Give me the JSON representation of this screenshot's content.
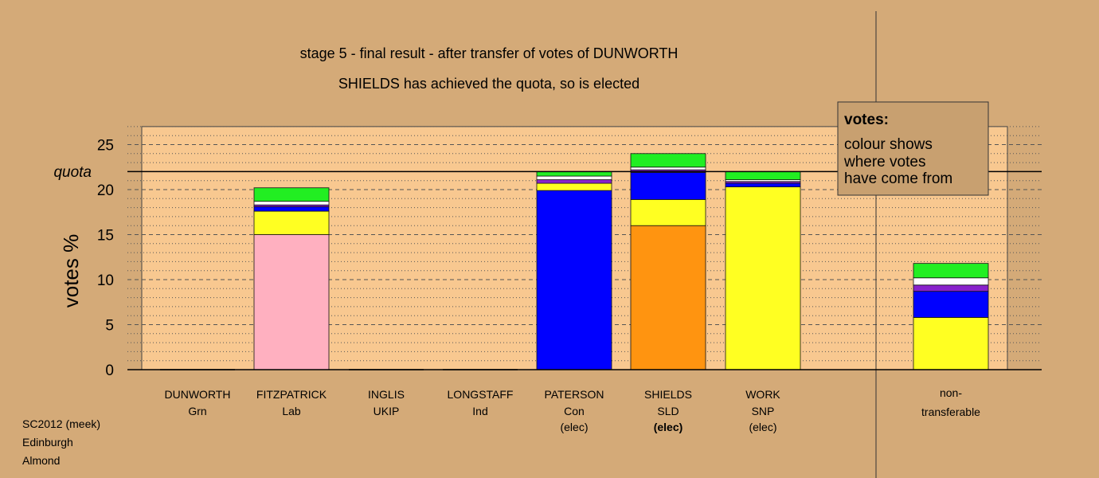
{
  "chart_data": {
    "type": "bar",
    "stacked": true,
    "title": "stage 5 - final result - after transfer of votes of DUNWORTH",
    "subtitle": "SHIELDS has achieved the quota, so is elected",
    "ylabel": "votes %",
    "ylim": [
      0,
      27
    ],
    "yticks": [
      "0",
      "5",
      "10",
      "15",
      "20",
      "25"
    ],
    "quota_label": "quota",
    "quota_value": 22.0,
    "candidates": [
      {
        "name": "DUNWORTH",
        "party": "Grn",
        "status": "",
        "segments": []
      },
      {
        "name": "FITZPATRICK",
        "party": "Lab",
        "status": "",
        "segments": [
          {
            "color": "#ffb0c0",
            "value": 15.0
          },
          {
            "color": "#ffff22",
            "value": 2.6
          },
          {
            "color": "#0000ff",
            "value": 0.5
          },
          {
            "color": "#8822cc",
            "value": 0.2
          },
          {
            "color": "#ffffff",
            "value": 0.4
          },
          {
            "color": "#22ee22",
            "value": 1.5
          }
        ]
      },
      {
        "name": "INGLIS",
        "party": "UKIP",
        "status": "",
        "segments": []
      },
      {
        "name": "LONGSTAFF",
        "party": "Ind",
        "status": "",
        "segments": []
      },
      {
        "name": "PATERSON",
        "party": "Con",
        "status": "(elec)",
        "segments": [
          {
            "color": "#0000ff",
            "value": 19.9
          },
          {
            "color": "#ffff22",
            "value": 0.8
          },
          {
            "color": "#8822cc",
            "value": 0.4
          },
          {
            "color": "#ffffff",
            "value": 0.4
          },
          {
            "color": "#22ee22",
            "value": 0.5
          }
        ]
      },
      {
        "name": "SHIELDS",
        "party": "SLD",
        "status": "(elec)",
        "status_bold": true,
        "segments": [
          {
            "color": "#ff9410",
            "value": 16.0
          },
          {
            "color": "#ffff22",
            "value": 2.9
          },
          {
            "color": "#0000ff",
            "value": 3.0
          },
          {
            "color": "#8822cc",
            "value": 0.3
          },
          {
            "color": "#ffffff",
            "value": 0.3
          },
          {
            "color": "#22ee22",
            "value": 1.5
          }
        ]
      },
      {
        "name": "WORK",
        "party": "SNP",
        "status": "(elec)",
        "segments": [
          {
            "color": "#ffff22",
            "value": 20.3
          },
          {
            "color": "#0000ff",
            "value": 0.4
          },
          {
            "color": "#8822cc",
            "value": 0.2
          },
          {
            "color": "#ffffff",
            "value": 0.2
          },
          {
            "color": "#22ee22",
            "value": 0.9
          }
        ]
      }
    ],
    "nontransferable": {
      "label_line1": "non-",
      "label_line2": "transferable",
      "segments": [
        {
          "color": "#ffff22",
          "value": 5.8
        },
        {
          "color": "#0000ff",
          "value": 2.9
        },
        {
          "color": "#8822cc",
          "value": 0.7
        },
        {
          "color": "#ffffff",
          "value": 0.8
        },
        {
          "color": "#22ee22",
          "value": 1.6
        }
      ]
    },
    "legend": {
      "title": "votes:",
      "lines": [
        "colour shows",
        "where votes",
        "have come from"
      ]
    },
    "footer": [
      "SC2012 (meek)",
      "Edinburgh",
      "Almond"
    ]
  }
}
